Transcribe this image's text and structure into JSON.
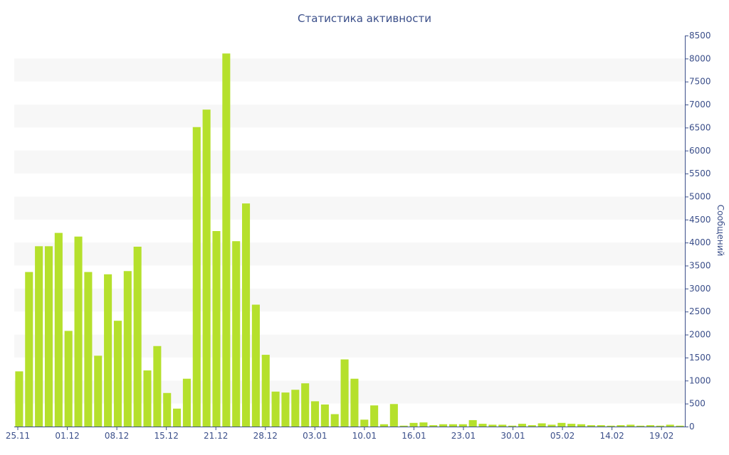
{
  "chart_data": {
    "type": "bar",
    "title": "Статистика активности",
    "xlabel": "",
    "ylabel": "Сообщений",
    "ylim": [
      0,
      8500
    ],
    "y_ticks": [
      0,
      500,
      1000,
      1500,
      2000,
      2500,
      3000,
      3500,
      4000,
      4500,
      5000,
      5500,
      6000,
      6500,
      7000,
      7500,
      8000,
      8500
    ],
    "y_axis_position": "right",
    "x_tick_labels": [
      "25.11",
      "01.12",
      "08.12",
      "15.12",
      "21.12",
      "28.12",
      "03.01",
      "10.01",
      "16.01",
      "23.01",
      "30.01",
      "05.02",
      "14.02",
      "19.02"
    ],
    "grid": "alternating horizontal bands",
    "bar_color": "#b5e02c",
    "band_color": "#f7f7f7",
    "text_color": "#3b4f8a",
    "values": [
      1200,
      3360,
      3920,
      3920,
      4210,
      2080,
      4130,
      3360,
      1540,
      3310,
      2300,
      3380,
      3910,
      1220,
      1750,
      730,
      390,
      1040,
      6510,
      6890,
      4250,
      8110,
      4030,
      4850,
      2650,
      1560,
      760,
      740,
      800,
      940,
      550,
      480,
      270,
      1460,
      1040,
      150,
      460,
      50,
      490,
      20,
      80,
      90,
      30,
      50,
      50,
      50,
      140,
      60,
      40,
      40,
      20,
      60,
      30,
      70,
      40,
      80,
      60,
      50,
      30,
      30,
      20,
      30,
      40,
      20,
      30,
      20,
      40,
      20
    ]
  }
}
